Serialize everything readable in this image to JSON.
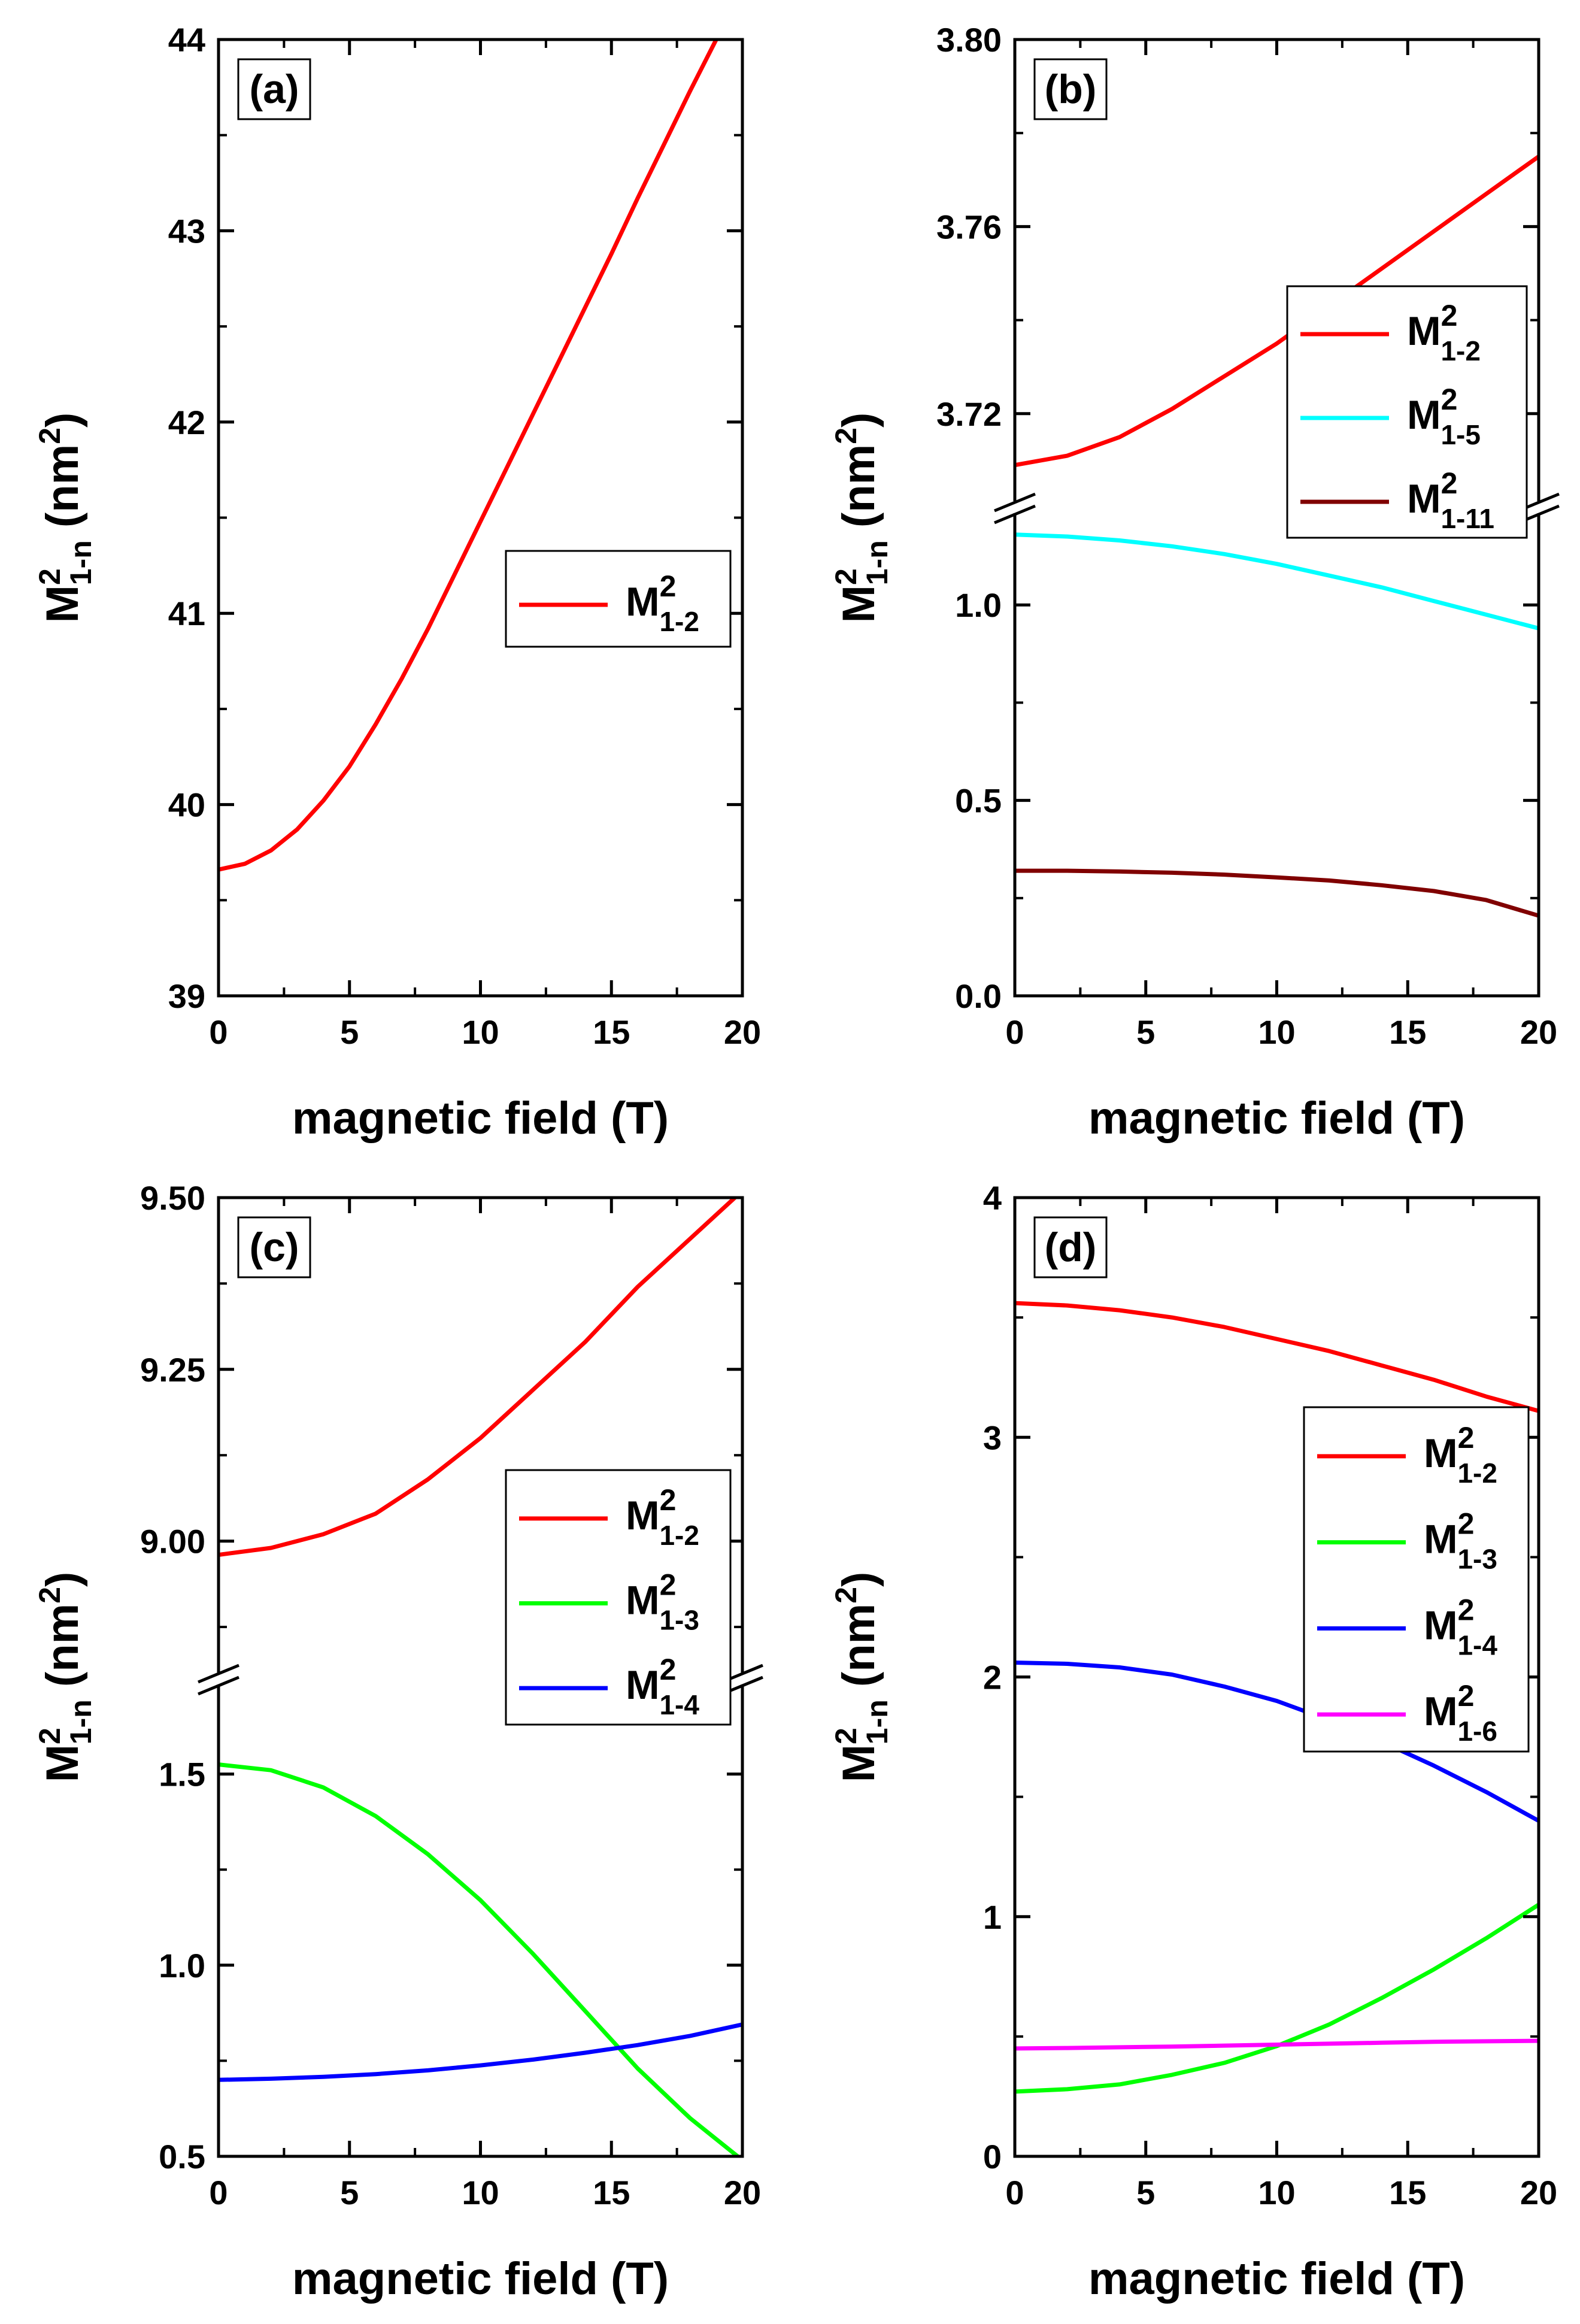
{
  "chart_data": [
    {
      "type": "line",
      "panel_label": "(a)",
      "xlabel": "magnetic field (T)",
      "ylabel_main": "M",
      "ylabel_sup": "2",
      "ylabel_sub": "1-n",
      "ylabel_unit": " (nm",
      "ylabel_unit_sup": "2",
      "ylabel_close": ")",
      "xlim": [
        0,
        20
      ],
      "xticks": [
        "0",
        "5",
        "10",
        "15",
        "20"
      ],
      "ylim": [
        39,
        44
      ],
      "yticks": [
        "39",
        "40",
        "41",
        "42",
        "43",
        "44"
      ],
      "legend_position": "center-right",
      "series": [
        {
          "name": "M",
          "sup": "2",
          "sub": "1-2",
          "color": "#ff0000",
          "x": [
            0,
            1,
            2,
            3,
            4,
            5,
            6,
            7,
            8,
            9,
            10,
            11,
            12,
            13,
            14,
            15,
            16,
            17,
            18,
            19
          ],
          "y": [
            39.66,
            39.69,
            39.76,
            39.87,
            40.02,
            40.2,
            40.42,
            40.66,
            40.92,
            41.2,
            41.48,
            41.76,
            42.04,
            42.32,
            42.6,
            42.88,
            43.17,
            43.45,
            43.73,
            44.0
          ]
        }
      ]
    },
    {
      "type": "line",
      "panel_label": "(b)",
      "xlabel": "magnetic field (T)",
      "ylabel_main": "M",
      "ylabel_sup": "2",
      "ylabel_sub": "1-n",
      "ylabel_unit": " (nm",
      "ylabel_unit_sup": "2",
      "ylabel_close": ")",
      "xlim": [
        0,
        20
      ],
      "xticks": [
        "0",
        "5",
        "10",
        "15",
        "20"
      ],
      "broken_axis": true,
      "upper_ylim": [
        3.7,
        3.8
      ],
      "upper_yticks": [
        "3.72",
        "3.76",
        "3.80"
      ],
      "lower_ylim": [
        0,
        1.25
      ],
      "lower_yticks": [
        "0.0",
        "0.5",
        "1.0"
      ],
      "legend_position": "upper-right",
      "series": [
        {
          "name": "M",
          "sup": "2",
          "sub": "1-2",
          "color": "#ff0000",
          "segment": "upper",
          "x": [
            0,
            2,
            4,
            6,
            8,
            10,
            12,
            14,
            16,
            18,
            20
          ],
          "y": [
            3.709,
            3.711,
            3.715,
            3.721,
            3.728,
            3.735,
            3.743,
            3.751,
            3.759,
            3.767,
            3.775
          ]
        },
        {
          "name": "M",
          "sup": "2",
          "sub": "1-5",
          "color": "#00ffff",
          "segment": "lower",
          "x": [
            0,
            2,
            4,
            6,
            8,
            10,
            12,
            14,
            16,
            18,
            20
          ],
          "y": [
            1.18,
            1.175,
            1.165,
            1.15,
            1.13,
            1.105,
            1.075,
            1.045,
            1.01,
            0.975,
            0.94
          ]
        },
        {
          "name": "M",
          "sup": "2",
          "sub": "1-11",
          "color": "#800000",
          "segment": "lower",
          "x": [
            0,
            2,
            4,
            6,
            8,
            10,
            12,
            14,
            16,
            18,
            20
          ],
          "y": [
            0.32,
            0.32,
            0.318,
            0.315,
            0.31,
            0.303,
            0.295,
            0.283,
            0.268,
            0.245,
            0.205
          ]
        }
      ]
    },
    {
      "type": "line",
      "panel_label": "(c)",
      "xlabel": "magnetic field (T)",
      "ylabel_main": "M",
      "ylabel_sup": "2",
      "ylabel_sub": "1-n",
      "ylabel_unit": " (nm",
      "ylabel_unit_sup": "2",
      "ylabel_close": ")",
      "xlim": [
        0,
        20
      ],
      "xticks": [
        "0",
        "5",
        "10",
        "15",
        "20"
      ],
      "broken_axis": true,
      "upper_ylim": [
        8.8,
        9.5
      ],
      "upper_yticks": [
        "9.00",
        "9.25",
        "9.50"
      ],
      "lower_ylim": [
        0.5,
        1.75
      ],
      "lower_yticks": [
        "0.5",
        "1.0",
        "1.5"
      ],
      "legend_position": "center-right",
      "series": [
        {
          "name": "M",
          "sup": "2",
          "sub": "1-2",
          "color": "#ff0000",
          "segment": "upper",
          "x": [
            0,
            2,
            4,
            6,
            8,
            10,
            12,
            14,
            16,
            18,
            20
          ],
          "y": [
            8.98,
            8.99,
            9.01,
            9.04,
            9.09,
            9.15,
            9.22,
            9.29,
            9.37,
            9.44,
            9.51
          ]
        },
        {
          "name": "M",
          "sup": "2",
          "sub": "1-3",
          "color": "#00ff00",
          "segment": "lower",
          "x": [
            0,
            2,
            4,
            6,
            8,
            10,
            12,
            14,
            16,
            18,
            20
          ],
          "y": [
            1.525,
            1.51,
            1.465,
            1.39,
            1.29,
            1.17,
            1.03,
            0.88,
            0.73,
            0.6,
            0.49
          ]
        },
        {
          "name": "M",
          "sup": "2",
          "sub": "1-4",
          "color": "#0000ff",
          "segment": "lower",
          "x": [
            0,
            2,
            4,
            6,
            8,
            10,
            12,
            14,
            16,
            18,
            20
          ],
          "y": [
            0.7,
            0.703,
            0.708,
            0.715,
            0.725,
            0.738,
            0.753,
            0.771,
            0.791,
            0.815,
            0.845
          ]
        }
      ]
    },
    {
      "type": "line",
      "panel_label": "(d)",
      "xlabel": "magnetic field (T)",
      "ylabel_main": "M",
      "ylabel_sup": "2",
      "ylabel_sub": "1-n",
      "ylabel_unit": " (nm",
      "ylabel_unit_sup": "2",
      "ylabel_close": ")",
      "xlim": [
        0,
        20
      ],
      "xticks": [
        "0",
        "5",
        "10",
        "15",
        "20"
      ],
      "ylim": [
        0,
        4
      ],
      "yticks": [
        "0",
        "1",
        "2",
        "3",
        "4"
      ],
      "legend_position": "upper-right",
      "series": [
        {
          "name": "M",
          "sup": "2",
          "sub": "1-2",
          "color": "#ff0000",
          "x": [
            0,
            2,
            4,
            6,
            8,
            10,
            12,
            14,
            16,
            18,
            20
          ],
          "y": [
            3.56,
            3.55,
            3.53,
            3.5,
            3.46,
            3.41,
            3.36,
            3.3,
            3.24,
            3.17,
            3.11
          ]
        },
        {
          "name": "M",
          "sup": "2",
          "sub": "1-3",
          "color": "#00ff00",
          "x": [
            0,
            2,
            4,
            6,
            8,
            10,
            12,
            14,
            16,
            18,
            20
          ],
          "y": [
            0.27,
            0.28,
            0.3,
            0.34,
            0.39,
            0.46,
            0.55,
            0.66,
            0.78,
            0.91,
            1.05
          ]
        },
        {
          "name": "M",
          "sup": "2",
          "sub": "1-4",
          "color": "#0000ff",
          "x": [
            0,
            2,
            4,
            6,
            8,
            10,
            12,
            14,
            16,
            18,
            20
          ],
          "y": [
            2.06,
            2.055,
            2.04,
            2.01,
            1.96,
            1.9,
            1.82,
            1.73,
            1.63,
            1.52,
            1.4
          ]
        },
        {
          "name": "M",
          "sup": "2",
          "sub": "1-6",
          "color": "#ff00ff",
          "x": [
            0,
            2,
            4,
            6,
            8,
            10,
            12,
            14,
            16,
            18,
            20
          ],
          "y": [
            0.45,
            0.452,
            0.455,
            0.458,
            0.462,
            0.466,
            0.47,
            0.474,
            0.478,
            0.48,
            0.482
          ]
        }
      ]
    }
  ]
}
